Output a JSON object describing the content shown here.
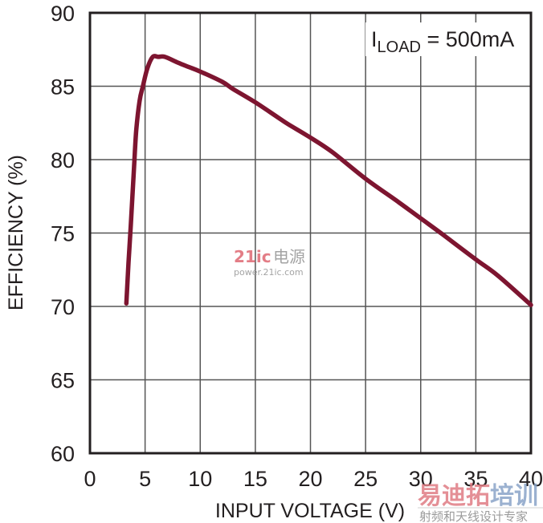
{
  "chart_data": {
    "type": "line",
    "title": "",
    "xlabel": "INPUT VOLTAGE (V)",
    "ylabel": "EFFICIENCY (%)",
    "xlim": [
      0,
      40
    ],
    "ylim": [
      60,
      90
    ],
    "x_ticks": [
      "0",
      "5",
      "10",
      "15",
      "20",
      "25",
      "30",
      "35",
      "40"
    ],
    "y_ticks": [
      "90",
      "85",
      "80",
      "75",
      "70",
      "65",
      "60"
    ],
    "grid": true,
    "legend": null,
    "annotation": {
      "main": "I",
      "subscript": "LOAD",
      "rest": " = 500mA"
    },
    "series": [
      {
        "name": "ILOAD = 500mA",
        "color": "#7d1530",
        "x": [
          3.3,
          3.5,
          3.7,
          4.0,
          4.2,
          4.5,
          4.8,
          5.2,
          5.7,
          6.2,
          6.8,
          8.0,
          9.0,
          10.0,
          12.0,
          13.0,
          15.0,
          17.0,
          18.0,
          20.0,
          22.0,
          25.0,
          28.0,
          30.0,
          32.0,
          35.0,
          37.0,
          40.0
        ],
        "y": [
          70.2,
          73.0,
          75.5,
          79.5,
          82.0,
          84.0,
          85.0,
          86.2,
          87.0,
          87.0,
          87.0,
          86.6,
          86.3,
          86.0,
          85.3,
          84.8,
          83.9,
          82.9,
          82.4,
          81.5,
          80.5,
          78.7,
          77.1,
          76.0,
          74.9,
          73.2,
          72.1,
          70.1
        ]
      }
    ]
  },
  "labels": {
    "x_title": "INPUT VOLTAGE (V)",
    "y_title": "EFFICIENCY (%)",
    "annot_main": "I",
    "annot_sub": "LOAD",
    "annot_rest": " = 500mA"
  },
  "watermarks": {
    "center_line1_num": "21ic",
    "center_line1_cn": "电源",
    "center_line2": "power.21ic.com",
    "corner_line1_red": "易迪拓",
    "corner_line1_blue": "培训",
    "corner_line2": "射频和天线设计专家"
  },
  "colors": {
    "curve": "#7d1530",
    "grid": "#555555",
    "frame": "#231f20"
  }
}
